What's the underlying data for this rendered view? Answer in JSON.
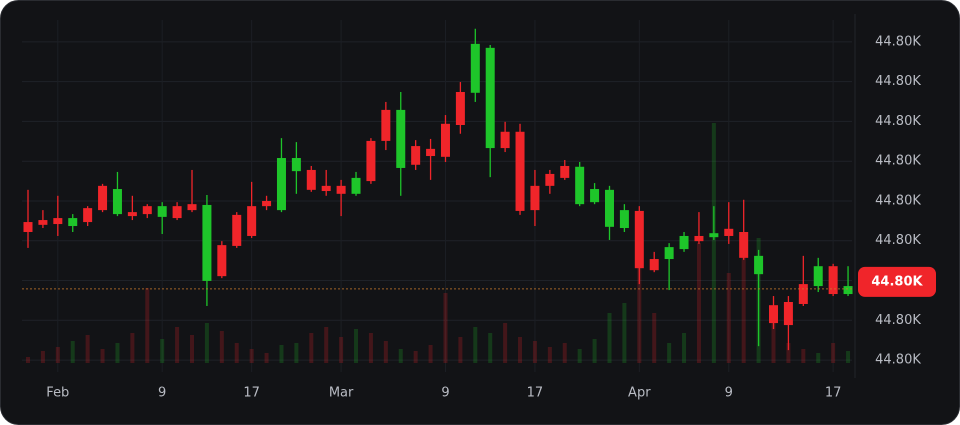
{
  "chart_data": {
    "type": "candlestick",
    "categories": [
      null,
      null,
      "Feb",
      null,
      null,
      null,
      null,
      null,
      null,
      "9",
      null,
      null,
      null,
      null,
      null,
      "17",
      null,
      null,
      null,
      null,
      null,
      "Mar",
      null,
      null,
      null,
      null,
      null,
      null,
      "9",
      null,
      null,
      null,
      null,
      null,
      "17",
      null,
      null,
      null,
      null,
      null,
      null,
      "Apr",
      null,
      null,
      null,
      null,
      null,
      "9",
      null,
      null,
      null,
      null,
      null,
      null,
      "17",
      null
    ],
    "open": [
      44799.47,
      44799.52,
      44799.57,
      44799.37,
      44799.82,
      44800.38,
      44799.67,
      44799.72,
      44799.87,
      44799.6,
      44799.87,
      44799.92,
      44797.99,
      44798.89,
      44799.65,
      44799.87,
      44800.0,
      44799.77,
      44800.75,
      44800.78,
      44800.38,
      44800.38,
      44800.18,
      44801.51,
      44802.29,
      44800.83,
      44801.38,
      44801.31,
      44801.94,
      44802.74,
      44802.72,
      44801.33,
      44801.74,
      44801.74,
      44800.38,
      44800.68,
      44800.88,
      44799.92,
      44799.97,
      44799.35,
      44799.32,
      44799.75,
      44798.54,
      44798.54,
      44798.79,
      44799.12,
      44799.09,
      44799.3,
      44799.22,
      44798.16,
      44797.38,
      44797.46,
      44797.91,
      44797.86,
      44798.36,
      44797.66
    ],
    "high": [
      44800.28,
      44799.77,
      44800.13,
      44799.67,
      44799.87,
      44800.43,
      44800.73,
      44800.13,
      44799.92,
      44799.97,
      44799.97,
      44800.78,
      44800.15,
      44798.99,
      44799.72,
      44800.48,
      44800.13,
      44801.58,
      44801.48,
      44800.88,
      44800.78,
      44800.53,
      44800.73,
      44801.58,
      44802.49,
      44802.74,
      44801.53,
      44801.56,
      44802.16,
      44802.99,
      44804.33,
      44803.92,
      44801.99,
      44801.94,
      44800.78,
      44800.78,
      44801.03,
      44800.98,
      44800.45,
      44800.38,
      44799.92,
      44799.87,
      44798.72,
      44798.94,
      44799.22,
      44799.72,
      44799.87,
      44799.97,
      44800.03,
      44798.77,
      44797.61,
      44797.61,
      44798.62,
      44798.57,
      44798.42,
      44798.36
    ],
    "low": [
      44798.82,
      44799.32,
      44799.12,
      44799.22,
      44799.37,
      44799.72,
      44799.62,
      44799.52,
      44799.57,
      44799.17,
      44799.52,
      44799.72,
      44797.36,
      44798.06,
      44798.82,
      44799.07,
      44799.77,
      44799.72,
      44800.18,
      44800.23,
      44800.13,
      44799.62,
      44800.13,
      44800.43,
      44801.28,
      44800.13,
      44800.78,
      44800.53,
      44800.98,
      44801.69,
      44802.49,
      44800.6,
      44801.23,
      44799.65,
      44799.37,
      44800.18,
      44800.53,
      44799.87,
      44799.92,
      44799.02,
      44799.22,
      44797.91,
      44798.21,
      44797.76,
      44798.72,
      44798.92,
      44799.02,
      44798.92,
      44798.52,
      44796.35,
      44796.78,
      44796.25,
      44797.36,
      44797.71,
      44797.61,
      44797.61
    ],
    "close": [
      44799.22,
      44799.4,
      44799.42,
      44799.57,
      44799.47,
      44799.77,
      44800.3,
      44799.62,
      44799.67,
      44799.87,
      44799.57,
      44799.77,
      44799.9,
      44798.11,
      44798.87,
      44799.12,
      44799.87,
      44801.08,
      44801.08,
      44800.28,
      44800.25,
      44800.18,
      44800.58,
      44800.5,
      44801.51,
      44802.29,
      44800.91,
      44801.13,
      44801.11,
      44801.91,
      44803.95,
      44803.85,
      44801.33,
      44799.75,
      44799.77,
      44800.38,
      44800.58,
      44800.86,
      44800.3,
      44800.28,
      44799.77,
      44798.31,
      44798.26,
      44798.84,
      44799.12,
      44798.99,
      44799.19,
      44799.12,
      44798.57,
      44798.62,
      44796.93,
      44796.88,
      44797.41,
      44798.36,
      44797.66,
      44797.86
    ],
    "volume": [
      6,
      12,
      16,
      22,
      28,
      14,
      20,
      30,
      75,
      24,
      36,
      28,
      40,
      32,
      20,
      14,
      10,
      18,
      20,
      30,
      36,
      26,
      34,
      30,
      22,
      14,
      12,
      18,
      70,
      26,
      36,
      30,
      40,
      26,
      22,
      16,
      20,
      14,
      24,
      50,
      60,
      100,
      50,
      20,
      30,
      120,
      240,
      90,
      110,
      125,
      40,
      20,
      14,
      10,
      20,
      12
    ],
    "up_color": "#1ec52a",
    "down_color": "#f0252a",
    "ylim": [
      44795.7,
      44804.55
    ],
    "yticks": [
      {
        "value": 44796,
        "label": "44.80K"
      },
      {
        "value": 44797,
        "label": "44.80K"
      },
      {
        "value": 44798,
        "label": "44.80K"
      },
      {
        "value": 44799,
        "label": "44.80K"
      },
      {
        "value": 44800,
        "label": "44.80K"
      },
      {
        "value": 44801,
        "label": "44.80K"
      },
      {
        "value": 44802,
        "label": "44.80K"
      },
      {
        "value": 44803,
        "label": "44.80K"
      },
      {
        "value": 44804,
        "label": "44.80K"
      }
    ],
    "last_price": {
      "value": 44797.79,
      "label": "44.80K"
    },
    "grid": true
  }
}
